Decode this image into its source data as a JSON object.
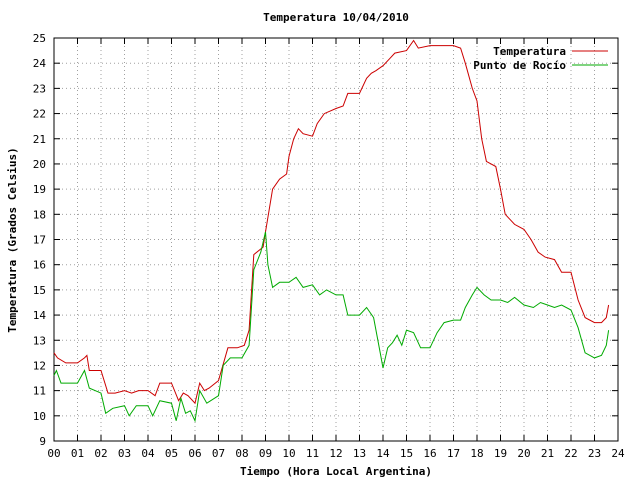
{
  "chart_data": {
    "type": "line",
    "title": "Temperatura 10/04/2010",
    "xlabel": "Tiempo (Hora Local Argentina)",
    "ylabel": "Temperatura (Grados Celsius)",
    "xlim": [
      0,
      24
    ],
    "ylim": [
      9,
      25
    ],
    "xticks": [
      "00",
      "01",
      "02",
      "03",
      "04",
      "05",
      "06",
      "07",
      "08",
      "09",
      "10",
      "11",
      "12",
      "13",
      "14",
      "15",
      "16",
      "17",
      "18",
      "19",
      "20",
      "21",
      "22",
      "23",
      "24"
    ],
    "yticks": [
      "9",
      "10",
      "11",
      "12",
      "13",
      "14",
      "15",
      "16",
      "17",
      "18",
      "19",
      "20",
      "21",
      "22",
      "23",
      "24",
      "25"
    ],
    "grid": true,
    "legend_position": "top-right",
    "series": [
      {
        "name": "Temperatura",
        "color": "#cc0000",
        "x": [
          0,
          0.15,
          0.5,
          1.0,
          1.3,
          1.4,
          1.5,
          2.0,
          2.3,
          2.6,
          3.0,
          3.3,
          3.6,
          4.0,
          4.3,
          4.5,
          5.0,
          5.3,
          5.5,
          5.7,
          6.0,
          6.2,
          6.4,
          6.6,
          7.0,
          7.4,
          7.8,
          8.1,
          8.3,
          8.5,
          8.9,
          9.0,
          9.3,
          9.6,
          9.9,
          10.0,
          10.2,
          10.4,
          10.6,
          11.0,
          11.2,
          11.5,
          12.0,
          12.3,
          12.5,
          13.0,
          13.3,
          13.5,
          13.7,
          14.0,
          14.3,
          14.5,
          15.0,
          15.3,
          15.5,
          16.0,
          16.5,
          17.0,
          17.3,
          17.5,
          17.8,
          18.0,
          18.2,
          18.4,
          18.8,
          19.0,
          19.2,
          19.6,
          20.0,
          20.3,
          20.6,
          20.9,
          21.3,
          21.6,
          22.0,
          22.3,
          22.6,
          23.0,
          23.3,
          23.5,
          23.6
        ],
        "values": [
          12.5,
          12.3,
          12.1,
          12.1,
          12.3,
          12.4,
          11.8,
          11.8,
          10.9,
          10.9,
          11.0,
          10.9,
          11.0,
          11.0,
          10.8,
          11.3,
          11.3,
          10.6,
          10.9,
          10.8,
          10.5,
          11.3,
          11.0,
          11.1,
          11.4,
          12.7,
          12.7,
          12.8,
          13.4,
          16.4,
          16.7,
          17.3,
          19.0,
          19.4,
          19.6,
          20.3,
          21.0,
          21.4,
          21.2,
          21.1,
          21.6,
          22.0,
          22.2,
          22.3,
          22.8,
          22.8,
          23.4,
          23.6,
          23.7,
          23.9,
          24.2,
          24.4,
          24.5,
          24.9,
          24.6,
          24.7,
          24.7,
          24.7,
          24.6,
          24.0,
          23.0,
          22.5,
          21.0,
          20.1,
          19.9,
          19.0,
          18.0,
          17.6,
          17.4,
          17.0,
          16.5,
          16.3,
          16.2,
          15.7,
          15.7,
          14.6,
          13.9,
          13.7,
          13.7,
          13.9,
          14.4
        ]
      },
      {
        "name": "Punto de Rocío",
        "color": "#00aa00",
        "x": [
          0,
          0.1,
          0.3,
          0.5,
          1.0,
          1.3,
          1.5,
          2.0,
          2.2,
          2.5,
          3.0,
          3.2,
          3.5,
          4.0,
          4.2,
          4.5,
          5.0,
          5.2,
          5.4,
          5.6,
          5.8,
          6.0,
          6.2,
          6.5,
          7.0,
          7.2,
          7.5,
          8.0,
          8.3,
          8.5,
          8.8,
          9.0,
          9.1,
          9.3,
          9.6,
          10.0,
          10.3,
          10.6,
          11.0,
          11.3,
          11.6,
          12.0,
          12.3,
          12.5,
          13.0,
          13.3,
          13.6,
          13.9,
          14.0,
          14.2,
          14.4,
          14.6,
          14.8,
          15.0,
          15.3,
          15.6,
          16.0,
          16.3,
          16.6,
          17.0,
          17.3,
          17.5,
          17.8,
          18.0,
          18.3,
          18.6,
          19.0,
          19.3,
          19.6,
          20.0,
          20.4,
          20.7,
          21.0,
          21.3,
          21.6,
          22.0,
          22.3,
          22.6,
          23.0,
          23.3,
          23.5,
          23.6
        ],
        "values": [
          11.6,
          11.8,
          11.3,
          11.3,
          11.3,
          11.8,
          11.1,
          10.9,
          10.1,
          10.3,
          10.4,
          10.0,
          10.4,
          10.4,
          10.0,
          10.6,
          10.5,
          9.8,
          10.7,
          10.1,
          10.2,
          9.8,
          11.0,
          10.5,
          10.8,
          12.0,
          12.3,
          12.3,
          12.8,
          15.8,
          16.5,
          17.3,
          16.0,
          15.1,
          15.3,
          15.3,
          15.5,
          15.1,
          15.2,
          14.8,
          15.0,
          14.8,
          14.8,
          14.0,
          14.0,
          14.3,
          13.9,
          12.4,
          11.9,
          12.7,
          12.9,
          13.2,
          12.8,
          13.4,
          13.3,
          12.7,
          12.7,
          13.3,
          13.7,
          13.8,
          13.8,
          14.3,
          14.8,
          15.1,
          14.8,
          14.6,
          14.6,
          14.5,
          14.7,
          14.4,
          14.3,
          14.5,
          14.4,
          14.3,
          14.4,
          14.2,
          13.5,
          12.5,
          12.3,
          12.4,
          12.8,
          13.4
        ]
      }
    ]
  }
}
